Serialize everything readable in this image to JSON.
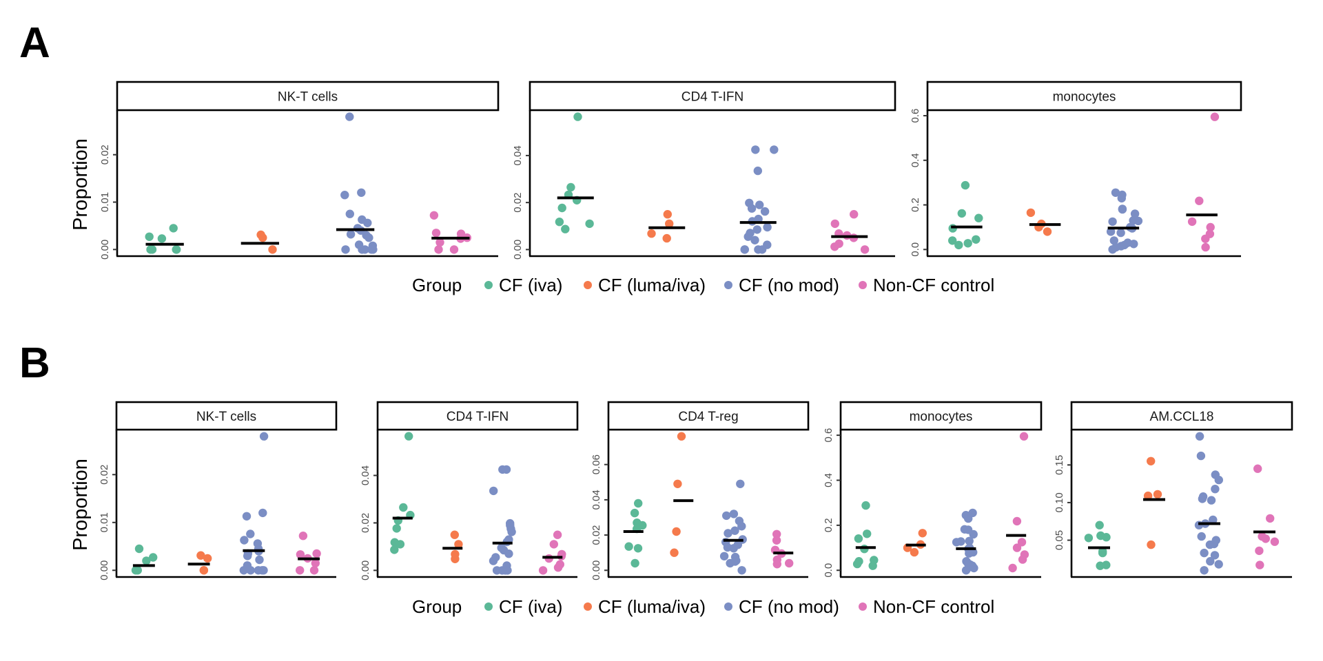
{
  "figure": {
    "panel_letters": [
      "A",
      "B"
    ],
    "y_axis_label": "Proportion"
  },
  "legend": {
    "title": "Group",
    "items": [
      {
        "label": "CF (iva)",
        "color": "#5bb897"
      },
      {
        "label": "CF (luma/iva)",
        "color": "#f57a4c"
      },
      {
        "label": "CF (no mod)",
        "color": "#7b8ec4"
      },
      {
        "label": "Non-CF control",
        "color": "#e074b8"
      }
    ]
  },
  "chart_data": [
    {
      "type": "scatter",
      "figure_panel": "A",
      "title": "NK-T cells",
      "xlabel": "",
      "ylabel": "Proportion",
      "ylim": [
        -0.0014,
        0.0294
      ],
      "yticks": [
        0,
        0.01,
        0.02
      ],
      "ytick_labels": [
        "0.00",
        "0.01",
        "0.02"
      ],
      "categories": [
        "CF (iva)",
        "CF (luma/iva)",
        "CF (no mod)",
        "Non-CF control"
      ],
      "series": [
        {
          "name": "CF (iva)",
          "values": [
            0.0045,
            0.0027,
            0.0023,
            0,
            0,
            0,
            0
          ],
          "center": 0.0011
        },
        {
          "name": "CF (luma/iva)",
          "values": [
            0.0031,
            0.0025,
            0
          ],
          "center": 0.0013
        },
        {
          "name": "CF (no mod)",
          "values": [
            0.028,
            0.012,
            0.0115,
            0.0075,
            0.0063,
            0.0056,
            0.0045,
            0.004,
            0.0032,
            0.003,
            0.0025,
            0.001,
            0.0008,
            0,
            0,
            0,
            0,
            0
          ],
          "center": 0.0042
        },
        {
          "name": "Non-CF control",
          "values": [
            0.0072,
            0.0035,
            0.0033,
            0.0025,
            0.0023,
            0.0015,
            0,
            0
          ],
          "center": 0.0024
        }
      ],
      "grid": false
    },
    {
      "type": "scatter",
      "figure_panel": "A",
      "title": "CD4 T-IFN",
      "xlabel": "",
      "ylabel": "",
      "ylim": [
        -0.0028,
        0.0593
      ],
      "yticks": [
        0,
        0.02,
        0.04
      ],
      "ytick_labels": [
        "0.00",
        "0.02",
        "0.04"
      ],
      "categories": [
        "CF (iva)",
        "CF (luma/iva)",
        "CF (no mod)",
        "Non-CF control"
      ],
      "series": [
        {
          "name": "CF (iva)",
          "values": [
            0.0565,
            0.0265,
            0.0233,
            0.021,
            0.0177,
            0.0118,
            0.011,
            0.0087
          ],
          "center": 0.022
        },
        {
          "name": "CF (luma/iva)",
          "values": [
            0.015,
            0.011,
            0.0068,
            0.0048
          ],
          "center": 0.0093
        },
        {
          "name": "CF (no mod)",
          "values": [
            0.0425,
            0.0425,
            0.0335,
            0.0198,
            0.019,
            0.0175,
            0.0162,
            0.013,
            0.012,
            0.0095,
            0.0085,
            0.007,
            0.0055,
            0.004,
            0.002,
            0,
            0,
            0,
            0
          ],
          "center": 0.0115
        },
        {
          "name": "Non-CF control",
          "values": [
            0.015,
            0.011,
            0.0068,
            0.006,
            0.005,
            0.0025,
            0.0012,
            0
          ],
          "center": 0.0055
        }
      ],
      "grid": false
    },
    {
      "type": "scatter",
      "figure_panel": "A",
      "title": "monocytes",
      "xlabel": "",
      "ylabel": "",
      "ylim": [
        -0.0298,
        0.6248
      ],
      "yticks": [
        0,
        0.2,
        0.4,
        0.6
      ],
      "ytick_labels": [
        "0.0",
        "0.2",
        "0.4",
        "0.6"
      ],
      "categories": [
        "CF (iva)",
        "CF (luma/iva)",
        "CF (no mod)",
        "Non-CF control"
      ],
      "series": [
        {
          "name": "CF (iva)",
          "values": [
            0.288,
            0.162,
            0.141,
            0.095,
            0.045,
            0.04,
            0.028,
            0.02
          ],
          "center": 0.101
        },
        {
          "name": "CF (luma/iva)",
          "values": [
            0.165,
            0.115,
            0.1,
            0.08
          ],
          "center": 0.112
        },
        {
          "name": "CF (no mod)",
          "values": [
            0.255,
            0.245,
            0.23,
            0.182,
            0.18,
            0.16,
            0.13,
            0.128,
            0.125,
            0.1,
            0.095,
            0.08,
            0.075,
            0.04,
            0.03,
            0.025,
            0.02,
            0.015,
            0.01,
            0.0
          ],
          "center": 0.096
        },
        {
          "name": "Non-CF control",
          "values": [
            0.595,
            0.218,
            0.125,
            0.1,
            0.07,
            0.048,
            0.01
          ],
          "center": 0.155
        }
      ],
      "grid": false
    },
    {
      "type": "scatter",
      "figure_panel": "B",
      "title": "NK-T cells",
      "xlabel": "",
      "ylabel": "Proportion",
      "ylim": [
        -0.0014,
        0.0294
      ],
      "yticks": [
        0,
        0.01,
        0.02
      ],
      "ytick_labels": [
        "0.00",
        "0.01",
        "0.02"
      ],
      "categories": [
        "CF (iva)",
        "CF (luma/iva)",
        "CF (no mod)",
        "Non-CF control"
      ],
      "series": [
        {
          "name": "CF (iva)",
          "values": [
            0.0045,
            0.0027,
            0.002,
            0,
            0
          ],
          "center": 0.001
        },
        {
          "name": "CF (luma/iva)",
          "values": [
            0.0031,
            0.0025,
            0,
            0
          ],
          "center": 0.0013
        },
        {
          "name": "CF (no mod)",
          "values": [
            0.028,
            0.012,
            0.0113,
            0.0076,
            0.0063,
            0.0056,
            0.0045,
            0.004,
            0.0035,
            0.003,
            0.0022,
            0.001,
            0,
            0,
            0,
            0,
            0
          ],
          "center": 0.0041
        },
        {
          "name": "Non-CF control",
          "values": [
            0.0072,
            0.0035,
            0.0033,
            0.0025,
            0.0015,
            0,
            0
          ],
          "center": 0.0024
        }
      ],
      "grid": false
    },
    {
      "type": "scatter",
      "figure_panel": "B",
      "title": "CD4 T-IFN",
      "xlabel": "",
      "ylabel": "",
      "ylim": [
        -0.0028,
        0.0593
      ],
      "yticks": [
        0,
        0.02,
        0.04
      ],
      "ytick_labels": [
        "0.00",
        "0.02",
        "0.04"
      ],
      "categories": [
        "CF (iva)",
        "CF (luma/iva)",
        "CF (no mod)",
        "Non-CF control"
      ],
      "series": [
        {
          "name": "CF (iva)",
          "values": [
            0.0565,
            0.0265,
            0.0233,
            0.021,
            0.0177,
            0.0118,
            0.011,
            0.0087
          ],
          "center": 0.022
        },
        {
          "name": "CF (luma/iva)",
          "values": [
            0.015,
            0.011,
            0.0068,
            0.0048
          ],
          "center": 0.0093
        },
        {
          "name": "CF (no mod)",
          "values": [
            0.0425,
            0.0425,
            0.0335,
            0.0198,
            0.019,
            0.0175,
            0.0162,
            0.013,
            0.012,
            0.0095,
            0.0085,
            0.007,
            0.0055,
            0.004,
            0.002,
            0,
            0,
            0,
            0
          ],
          "center": 0.0115
        },
        {
          "name": "Non-CF control",
          "values": [
            0.015,
            0.011,
            0.0068,
            0.006,
            0.005,
            0.0025,
            0.0012,
            0
          ],
          "center": 0.0055
        }
      ],
      "grid": false
    },
    {
      "type": "scatter",
      "figure_panel": "B",
      "title": "CD4 T-reg",
      "xlabel": "",
      "ylabel": "",
      "ylim": [
        -0.0038,
        0.0798
      ],
      "yticks": [
        0,
        0.02,
        0.04,
        0.06
      ],
      "ytick_labels": [
        "0.00",
        "0.02",
        "0.04",
        "0.06"
      ],
      "categories": [
        "CF (iva)",
        "CF (luma/iva)",
        "CF (no mod)",
        "Non-CF control"
      ],
      "series": [
        {
          "name": "CF (iva)",
          "values": [
            0.038,
            0.0325,
            0.027,
            0.0255,
            0.0235,
            0.0135,
            0.0125,
            0.004
          ],
          "center": 0.022
        },
        {
          "name": "CF (luma/iva)",
          "values": [
            0.076,
            0.049,
            0.022,
            0.01
          ],
          "center": 0.0395
        },
        {
          "name": "CF (no mod)",
          "values": [
            0.049,
            0.032,
            0.031,
            0.028,
            0.025,
            0.0225,
            0.021,
            0.0175,
            0.016,
            0.0145,
            0.013,
            0.0125,
            0.008,
            0.0075,
            0.0055,
            0.005,
            0.004,
            0.0
          ],
          "center": 0.017
        },
        {
          "name": "Non-CF control",
          "values": [
            0.0205,
            0.017,
            0.0115,
            0.0095,
            0.006,
            0.004,
            0.0035
          ],
          "center": 0.0098
        }
      ],
      "grid": false
    },
    {
      "type": "scatter",
      "figure_panel": "B",
      "title": "monocytes",
      "xlabel": "",
      "ylabel": "",
      "ylim": [
        -0.0298,
        0.6248
      ],
      "yticks": [
        0,
        0.2,
        0.4,
        0.6
      ],
      "ytick_labels": [
        "0.0",
        "0.2",
        "0.4",
        "0.6"
      ],
      "categories": [
        "CF (iva)",
        "CF (luma/iva)",
        "CF (no mod)",
        "Non-CF control"
      ],
      "series": [
        {
          "name": "CF (iva)",
          "values": [
            0.288,
            0.162,
            0.141,
            0.095,
            0.045,
            0.04,
            0.028,
            0.02
          ],
          "center": 0.101
        },
        {
          "name": "CF (luma/iva)",
          "values": [
            0.165,
            0.115,
            0.1,
            0.08
          ],
          "center": 0.112
        },
        {
          "name": "CF (no mod)",
          "values": [
            0.255,
            0.245,
            0.23,
            0.182,
            0.18,
            0.16,
            0.13,
            0.128,
            0.125,
            0.1,
            0.095,
            0.08,
            0.075,
            0.04,
            0.03,
            0.025,
            0.02,
            0.015,
            0.01,
            0.0
          ],
          "center": 0.096
        },
        {
          "name": "Non-CF control",
          "values": [
            0.595,
            0.218,
            0.125,
            0.1,
            0.07,
            0.048,
            0.01
          ],
          "center": 0.155
        }
      ],
      "grid": false
    },
    {
      "type": "scatter",
      "figure_panel": "B",
      "title": "AM.CCL18",
      "xlabel": "",
      "ylabel": "",
      "ylim": [
        0.0011,
        0.1969
      ],
      "yticks": [
        0.05,
        0.1,
        0.15
      ],
      "ytick_labels": [
        "0.05",
        "0.10",
        "0.15"
      ],
      "categories": [
        "CF (iva)",
        "CF (luma/iva)",
        "CF (no mod)",
        "Non-CF control"
      ],
      "series": [
        {
          "name": "CF (iva)",
          "values": [
            0.07,
            0.056,
            0.054,
            0.053,
            0.035,
            0.033,
            0.017,
            0.016
          ],
          "center": 0.04
        },
        {
          "name": "CF (luma/iva)",
          "values": [
            0.155,
            0.111,
            0.109,
            0.044
          ],
          "center": 0.104
        },
        {
          "name": "CF (no mod)",
          "values": [
            0.188,
            0.162,
            0.137,
            0.13,
            0.118,
            0.108,
            0.105,
            0.103,
            0.077,
            0.072,
            0.07,
            0.055,
            0.05,
            0.045,
            0.044,
            0.033,
            0.03,
            0.022,
            0.018,
            0.01
          ],
          "center": 0.072
        },
        {
          "name": "Non-CF control",
          "values": [
            0.145,
            0.079,
            0.055,
            0.052,
            0.048,
            0.036,
            0.017
          ],
          "center": 0.061
        }
      ],
      "grid": false
    }
  ]
}
